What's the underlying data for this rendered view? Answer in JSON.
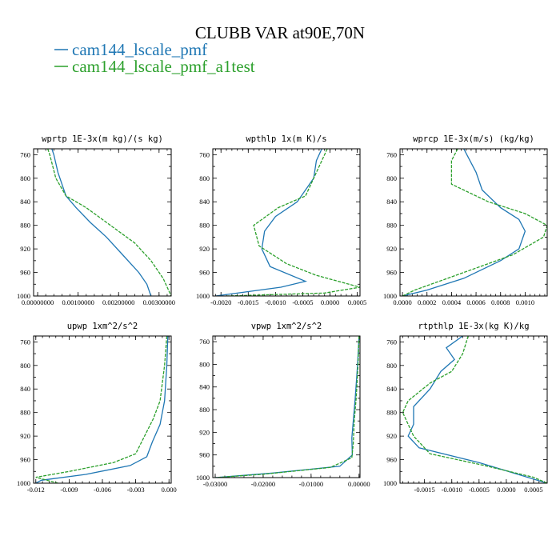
{
  "figure": {
    "title": "CLUBB VAR at90E,70N",
    "legend": [
      {
        "label": "cam144_lscale_pmf",
        "color": "#1f77b4",
        "dash": false
      },
      {
        "label": "cam144_lscale_pmf_a1test",
        "color": "#2ca02c",
        "dash": true
      }
    ]
  },
  "chart_data": [
    {
      "type": "line",
      "title": "wprtp  1E-3x(m kg)/(s kg)",
      "xlim": [
        -0.0001,
        0.0033
      ],
      "ylim": [
        1000,
        750
      ],
      "xticks": [
        0,
        0.001,
        0.002,
        0.003
      ],
      "xtick_labels": [
        "0.00000000",
        "0.00100000",
        "0.00200000",
        "0.00300000"
      ],
      "yticks": [
        760,
        800,
        840,
        880,
        920,
        960,
        1000
      ],
      "series": [
        {
          "name": "cam144_lscale_pmf",
          "points": [
            [
              0.00035,
              750
            ],
            [
              0.0004,
              760
            ],
            [
              0.0005,
              790
            ],
            [
              0.0007,
              830
            ],
            [
              0.00095,
              850
            ],
            [
              0.0013,
              875
            ],
            [
              0.0017,
              900
            ],
            [
              0.0021,
              930
            ],
            [
              0.0025,
              960
            ],
            [
              0.0027,
              980
            ],
            [
              0.0028,
              1000
            ]
          ]
        },
        {
          "name": "cam144_lscale_pmf_a1test",
          "points": [
            [
              0.00025,
              750
            ],
            [
              0.0003,
              760
            ],
            [
              0.00045,
              800
            ],
            [
              0.0007,
              830
            ],
            [
              0.0012,
              850
            ],
            [
              0.0018,
              880
            ],
            [
              0.0024,
              910
            ],
            [
              0.0028,
              940
            ],
            [
              0.0031,
              970
            ],
            [
              0.0033,
              1000
            ]
          ]
        }
      ]
    },
    {
      "type": "line",
      "title": "wpthlp  1x(m K)/s",
      "xlim": [
        -0.00215,
        0.00055
      ],
      "ylim": [
        1000,
        750
      ],
      "xticks": [
        -0.002,
        -0.0015,
        -0.001,
        -0.0005,
        0,
        0.0005
      ],
      "xtick_labels": [
        "-0.0020",
        "-0.0015",
        "-0.0010",
        "-0.0005",
        "0.0000",
        "0.0005"
      ],
      "yticks": [
        760,
        800,
        840,
        880,
        920,
        960,
        1000
      ],
      "series": [
        {
          "name": "cam144_lscale_pmf",
          "points": [
            [
              -0.00015,
              750
            ],
            [
              -0.00025,
              770
            ],
            [
              -0.0003,
              800
            ],
            [
              -0.0006,
              840
            ],
            [
              -0.001,
              865
            ],
            [
              -0.0012,
              890
            ],
            [
              -0.00125,
              920
            ],
            [
              -0.0011,
              950
            ],
            [
              -0.00045,
              975
            ],
            [
              -0.0009,
              985
            ],
            [
              -0.0021,
              1000
            ]
          ]
        },
        {
          "name": "cam144_lscale_pmf_a1test",
          "points": [
            [
              -5e-05,
              750
            ],
            [
              -0.0003,
              800
            ],
            [
              -0.00045,
              830
            ],
            [
              -0.00095,
              850
            ],
            [
              -0.0014,
              880
            ],
            [
              -0.0013,
              915
            ],
            [
              -0.0008,
              945
            ],
            [
              -0.00025,
              965
            ],
            [
              0.00055,
              985
            ],
            [
              -0.0001,
              995
            ],
            [
              -0.0019,
              1000
            ]
          ]
        }
      ]
    },
    {
      "type": "line",
      "title": "wprcp  1E-3x(m/s) (kg/kg)",
      "xlim": [
        -2e-05,
        0.00118
      ],
      "ylim": [
        1000,
        750
      ],
      "xticks": [
        0,
        0.0002,
        0.0004,
        0.0006,
        0.0008,
        0.001
      ],
      "xtick_labels": [
        "0.0000",
        "0.0002",
        "0.0004",
        "0.0006",
        "0.0008",
        "0.0010"
      ],
      "yticks": [
        760,
        800,
        840,
        880,
        920,
        960,
        1000
      ],
      "series": [
        {
          "name": "cam144_lscale_pmf",
          "points": [
            [
              0.0005,
              750
            ],
            [
              0.0006,
              790
            ],
            [
              0.00065,
              820
            ],
            [
              0.0008,
              850
            ],
            [
              0.00095,
              870
            ],
            [
              0.001,
              890
            ],
            [
              0.00095,
              920
            ],
            [
              0.0008,
              940
            ],
            [
              0.0005,
              970
            ],
            [
              0.0002,
              990
            ],
            [
              0,
              1000
            ]
          ]
        },
        {
          "name": "cam144_lscale_pmf_a1test",
          "points": [
            [
              0.00045,
              750
            ],
            [
              0.0004,
              770
            ],
            [
              0.0004,
              810
            ],
            [
              0.0007,
              840
            ],
            [
              0.001,
              860
            ],
            [
              0.00118,
              880
            ],
            [
              0.00115,
              900
            ],
            [
              0.0009,
              930
            ],
            [
              0.0005,
              960
            ],
            [
              0.0001,
              990
            ],
            [
              0,
              1000
            ]
          ]
        }
      ]
    },
    {
      "type": "line",
      "title": "upwp  1xm^2/s^2",
      "xlim": [
        -0.0122,
        0.0002
      ],
      "ylim": [
        1000,
        750
      ],
      "xticks": [
        -0.012,
        -0.009,
        -0.006,
        -0.003,
        0
      ],
      "xtick_labels": [
        "-0.012",
        "-0.009",
        "-0.006",
        "-0.003",
        "0.000"
      ],
      "yticks": [
        760,
        800,
        840,
        880,
        920,
        960,
        1000
      ],
      "series": [
        {
          "name": "cam144_lscale_pmf",
          "points": [
            [
              -0.0001,
              750
            ],
            [
              -0.0002,
              800
            ],
            [
              -0.0004,
              860
            ],
            [
              -0.0008,
              900
            ],
            [
              -0.0015,
              930
            ],
            [
              -0.002,
              955
            ],
            [
              -0.0035,
              970
            ],
            [
              -0.0075,
              985
            ],
            [
              -0.0115,
              995
            ],
            [
              -0.012,
              1000
            ]
          ]
        },
        {
          "name": "cam144_lscale_pmf_a1test",
          "points": [
            [
              -0.0002,
              750
            ],
            [
              -0.0004,
              800
            ],
            [
              -0.0008,
              860
            ],
            [
              -0.0014,
              890
            ],
            [
              -0.0022,
              920
            ],
            [
              -0.003,
              950
            ],
            [
              -0.005,
              965
            ],
            [
              -0.009,
              980
            ],
            [
              -0.012,
              990
            ],
            [
              -0.01,
              1000
            ]
          ]
        }
      ]
    },
    {
      "type": "line",
      "title": "vpwp  1xm^2/s^2",
      "xlim": [
        -0.0305,
        0.0002
      ],
      "ylim": [
        1000,
        750
      ],
      "xticks": [
        -0.03,
        -0.02,
        -0.01,
        0
      ],
      "xtick_labels": [
        "-0.03000",
        "-0.02000",
        "-0.01000",
        "0.00000"
      ],
      "yticks": [
        760,
        800,
        840,
        880,
        920,
        960,
        1000
      ],
      "series": [
        {
          "name": "cam144_lscale_pmf",
          "points": [
            [
              0,
              750
            ],
            [
              -0.0003,
              800
            ],
            [
              -0.0008,
              860
            ],
            [
              -0.0012,
              900
            ],
            [
              -0.0015,
              930
            ],
            [
              -0.0014,
              960
            ],
            [
              -0.004,
              980
            ],
            [
              -0.018,
              992
            ],
            [
              -0.03,
              1000
            ]
          ]
        },
        {
          "name": "cam144_lscale_pmf_a1test",
          "points": [
            [
              0,
              750
            ],
            [
              -0.0002,
              800
            ],
            [
              -0.0006,
              860
            ],
            [
              -0.001,
              900
            ],
            [
              -0.0012,
              940
            ],
            [
              -0.0015,
              965
            ],
            [
              -0.006,
              982
            ],
            [
              -0.02,
              994
            ],
            [
              -0.03,
              1000
            ]
          ]
        }
      ]
    },
    {
      "type": "line",
      "title": "rtpthlp  1E-3x(kg K)/kg",
      "xlim": [
        -0.00195,
        0.00075
      ],
      "ylim": [
        1000,
        750
      ],
      "xticks": [
        -0.0015,
        -0.001,
        -0.0005,
        0,
        0.0005
      ],
      "xtick_labels": [
        "-0.0015",
        "-0.0010",
        "-0.0005",
        "0.0000",
        "0.0005"
      ],
      "yticks": [
        760,
        800,
        840,
        880,
        920,
        960,
        1000
      ],
      "series": [
        {
          "name": "cam144_lscale_pmf",
          "points": [
            [
              -0.0008,
              750
            ],
            [
              -0.0011,
              770
            ],
            [
              -0.00095,
              790
            ],
            [
              -0.0012,
              810
            ],
            [
              -0.0014,
              840
            ],
            [
              -0.0017,
              870
            ],
            [
              -0.0017,
              900
            ],
            [
              -0.0018,
              920
            ],
            [
              -0.0016,
              940
            ],
            [
              -0.0005,
              965
            ],
            [
              0.00075,
              1000
            ]
          ]
        },
        {
          "name": "cam144_lscale_pmf_a1test",
          "points": [
            [
              -0.0007,
              750
            ],
            [
              -0.0008,
              780
            ],
            [
              -0.001,
              810
            ],
            [
              -0.0014,
              830
            ],
            [
              -0.0018,
              860
            ],
            [
              -0.0019,
              880
            ],
            [
              -0.0017,
              920
            ],
            [
              -0.0014,
              950
            ],
            [
              -0.0004,
              970
            ],
            [
              0.0005,
              990
            ],
            [
              0.00075,
              1000
            ]
          ]
        }
      ]
    }
  ]
}
